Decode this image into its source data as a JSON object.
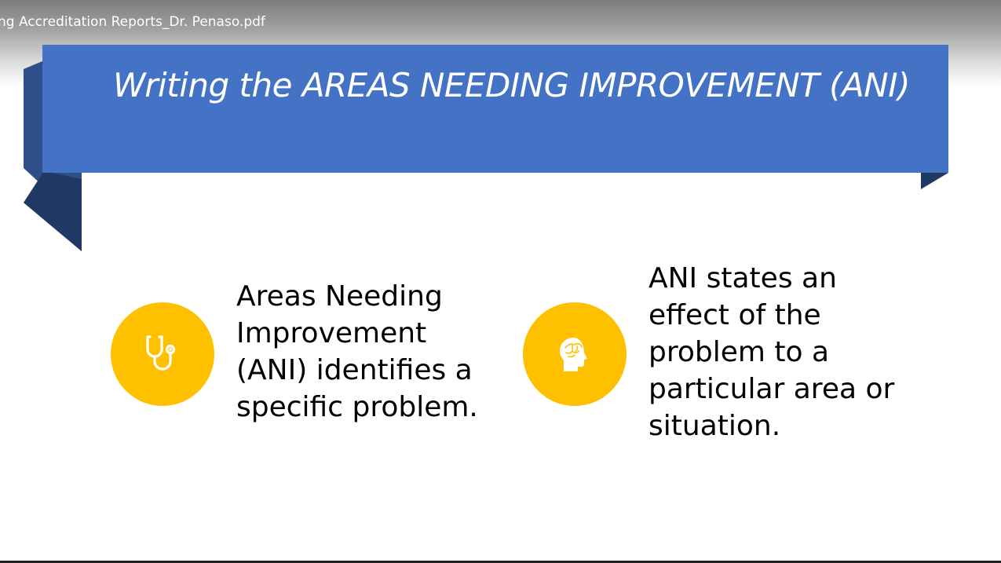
{
  "viewer": {
    "file_name": "ng Accreditation Reports_Dr. Penaso.pdf"
  },
  "slide": {
    "title": "Writing the AREAS NEEDING IMPROVEMENT (ANI)",
    "banner_color": "#4472c4",
    "banner_shadow_color": "#203864",
    "accent_color": "#ffc000",
    "points": [
      {
        "icon": "stethoscope-icon",
        "text": "Areas Needing Improvement (ANI) identifies a specific problem."
      },
      {
        "icon": "brain-head-icon",
        "text": "ANI states an effect of the problem to a particular area or situation."
      }
    ]
  }
}
